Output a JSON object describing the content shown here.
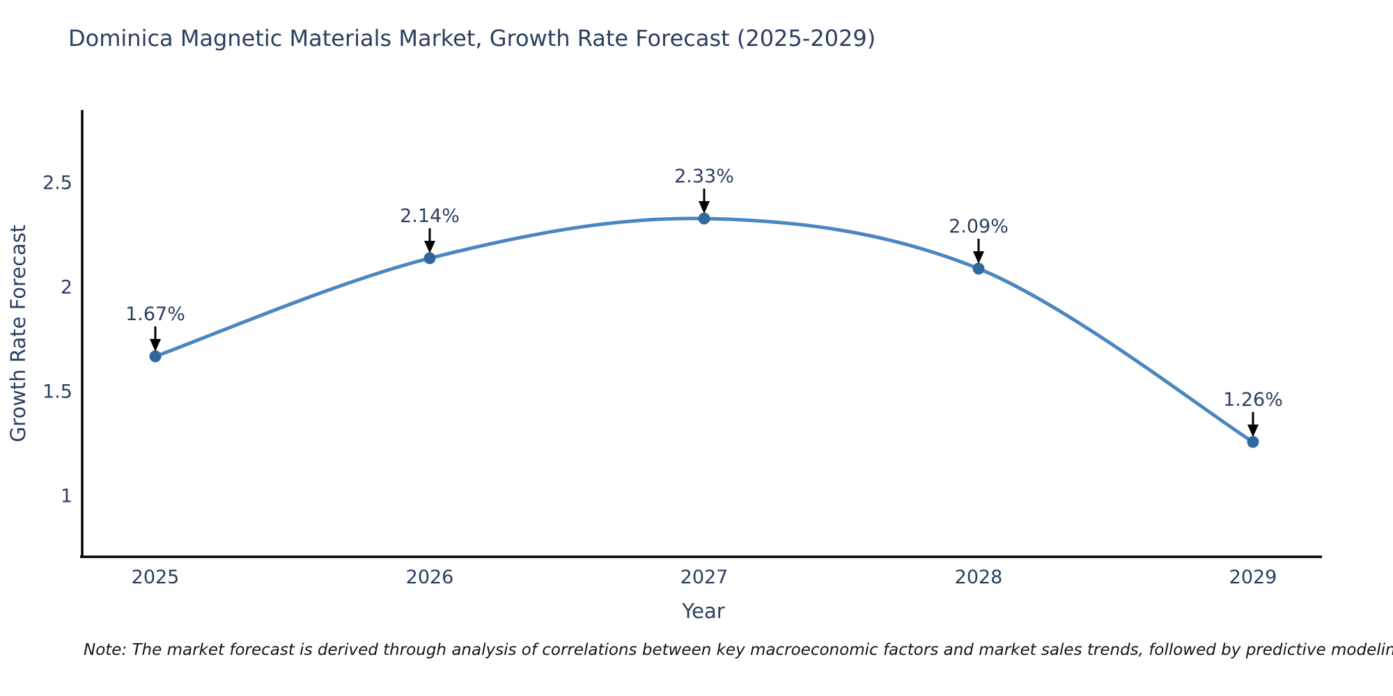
{
  "title": "Dominica Magnetic Materials Market, Growth Rate Forecast (2025-2029)",
  "note": "Note: The market forecast is derived through analysis of correlations between key macroeconomic factors and market sales trends, followed by predictive modeling to project future sales",
  "chart_data": {
    "type": "line",
    "categories": [
      "2025",
      "2026",
      "2027",
      "2028",
      "2029"
    ],
    "series": [
      {
        "name": "Growth Rate Forecast",
        "values": [
          1.67,
          2.14,
          2.33,
          2.09,
          1.26
        ]
      }
    ],
    "point_labels": [
      "1.67%",
      "2.14%",
      "2.33%",
      "2.09%",
      "1.26%"
    ],
    "xlabel": "Year",
    "ylabel": "Growth Rate Forecast",
    "yticks": [
      "2.5",
      "2",
      "1.5",
      "1"
    ],
    "ytick_values": [
      2.5,
      2,
      1.5,
      1
    ],
    "ylim": [
      0.71,
      2.85
    ],
    "grid": false,
    "legend": "none",
    "line_shape": "spline",
    "colors": {
      "line": "#4a86bf",
      "marker": "#33689e",
      "arrow": "#000000",
      "axis": "#000000",
      "tick_label": "#2a3f5f",
      "annotation_text": "#2a3f5f"
    }
  }
}
